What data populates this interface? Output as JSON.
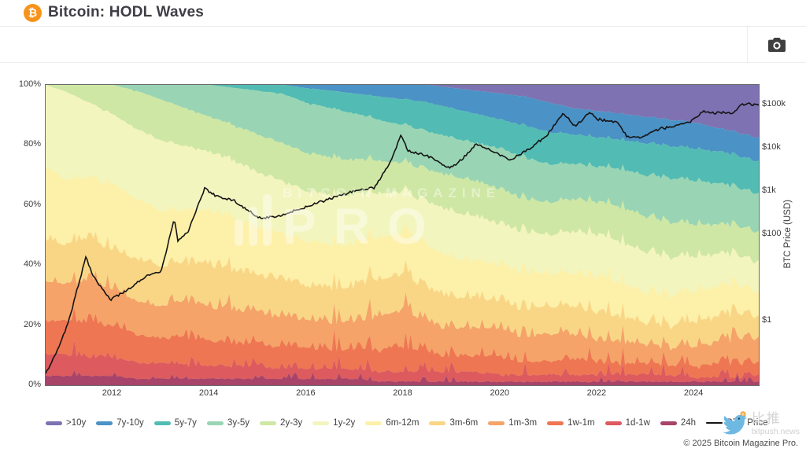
{
  "header": {
    "title": "Bitcoin: HODL Waves",
    "logo_glyph": "₿"
  },
  "watermark": {
    "line1": "BITCOIN MAGAZINE",
    "line2": "PRO"
  },
  "footer": {
    "copyright": "© 2025 Bitcoin Magazine Pro.",
    "bitpush_name": "比推",
    "bitpush_domain": "bitpush.news"
  },
  "chart_data": {
    "type": "area",
    "title": "Bitcoin: HODL Waves",
    "stacked": true,
    "grid": false,
    "legend_position": "bottom",
    "x": [
      2010.62,
      2011.0,
      2011.5,
      2012.0,
      2012.5,
      2013.0,
      2013.5,
      2014.0,
      2014.5,
      2015.0,
      2015.5,
      2016.0,
      2016.5,
      2017.0,
      2017.5,
      2018.0,
      2018.5,
      2019.0,
      2019.5,
      2020.0,
      2020.5,
      2021.0,
      2021.5,
      2022.0,
      2022.5,
      2023.0,
      2023.5,
      2024.0,
      2024.5,
      2025.0,
      2025.33
    ],
    "series": [
      {
        "name": ">10y",
        "color": "#7e72b3",
        "jitter": 0.0,
        "values": [
          0,
          0,
          0,
          0,
          0,
          0,
          0,
          0,
          0,
          0,
          0,
          0,
          0,
          0,
          0,
          0,
          0,
          1,
          2,
          3,
          4,
          6,
          8,
          9,
          10,
          11,
          12,
          13,
          15,
          17,
          18
        ]
      },
      {
        "name": "7y-10y",
        "color": "#4b92c6",
        "jitter": 0.15,
        "values": [
          0,
          0,
          0,
          0,
          0,
          0,
          0,
          0,
          0,
          0,
          0,
          1,
          2,
          3,
          4,
          5,
          6,
          7,
          8,
          9,
          10,
          10,
          9,
          9,
          9,
          9,
          9,
          9,
          8,
          8,
          8
        ]
      },
      {
        "name": "5y-7y",
        "color": "#52bcb4",
        "jitter": 0.2,
        "values": [
          0,
          0,
          0,
          0,
          0,
          0,
          0,
          0,
          1,
          2,
          3,
          5,
          6,
          7,
          8,
          9,
          10,
          10,
          10,
          10,
          11,
          11,
          10,
          10,
          10,
          11,
          11,
          11,
          11,
          11,
          11
        ]
      },
      {
        "name": "3y-5y",
        "color": "#99d5b4",
        "jitter": 0.3,
        "values": [
          0,
          0,
          0,
          0,
          2,
          5,
          8,
          11,
          13,
          15,
          17,
          17,
          17,
          16,
          14,
          13,
          13,
          13,
          13,
          14,
          14,
          13,
          12,
          12,
          13,
          14,
          15,
          15,
          14,
          13,
          13
        ]
      },
      {
        "name": "2y-3y",
        "color": "#cfe7a4",
        "jitter": 0.35,
        "values": [
          0,
          2,
          6,
          10,
          13,
          14,
          13,
          12,
          12,
          13,
          13,
          13,
          13,
          12,
          11,
          10,
          11,
          12,
          12,
          12,
          11,
          11,
          11,
          11,
          12,
          12,
          12,
          11,
          10,
          10,
          10
        ]
      },
      {
        "name": "1y-2y",
        "color": "#f3f5be",
        "jitter": 0.5,
        "values": [
          28,
          30,
          26,
          24,
          24,
          24,
          22,
          20,
          20,
          19,
          18,
          17,
          17,
          17,
          15,
          14,
          15,
          16,
          15,
          14,
          14,
          13,
          14,
          14,
          14,
          14,
          13,
          12,
          11,
          10,
          10
        ]
      },
      {
        "name": "6m-12m",
        "color": "#fdf0a8",
        "jitter": 1.0,
        "values": [
          24,
          22,
          20,
          22,
          20,
          19,
          17,
          18,
          17,
          16,
          15,
          15,
          14,
          14,
          14,
          14,
          14,
          13,
          12,
          12,
          12,
          11,
          11,
          12,
          11,
          10,
          10,
          10,
          10,
          9,
          8
        ]
      },
      {
        "name": "3m-6m",
        "color": "#f9d686",
        "jitter": 1.9,
        "values": [
          14,
          13,
          14,
          13,
          14,
          13,
          13,
          14,
          13,
          12,
          12,
          11,
          11,
          11,
          12,
          12,
          11,
          10,
          10,
          9,
          9,
          9,
          9,
          9,
          8,
          7,
          7,
          8,
          8,
          8,
          7
        ]
      },
      {
        "name": "1m-3m",
        "color": "#f5a368",
        "jitter": 2.9,
        "values": [
          13,
          12,
          14,
          12,
          11,
          10,
          12,
          11,
          11,
          10,
          10,
          9,
          9,
          9,
          11,
          11,
          10,
          9,
          9,
          9,
          8,
          9,
          8,
          7,
          7,
          6,
          5,
          6,
          7,
          8,
          8
        ]
      },
      {
        "name": "1w-1m",
        "color": "#ee7652",
        "jitter": 3.4,
        "values": [
          11,
          11,
          11,
          10,
          9,
          8,
          9,
          8,
          7,
          7,
          7,
          7,
          6,
          6,
          7,
          8,
          6,
          5,
          5,
          5,
          4,
          4,
          5,
          4,
          3,
          3,
          3,
          3,
          4,
          4,
          4
        ]
      },
      {
        "name": "1d-1w",
        "color": "#dd5a5e",
        "jitter": 2.5,
        "values": [
          7,
          7,
          6,
          6,
          5,
          5,
          4,
          4,
          4,
          4,
          3,
          3,
          3,
          3,
          3,
          3,
          3,
          3,
          3,
          2,
          2,
          2,
          2,
          2,
          2,
          2,
          2,
          1,
          1,
          1,
          2
        ]
      },
      {
        "name": "24h",
        "color": "#a8436a",
        "jitter": 1.4,
        "values": [
          3,
          3,
          3,
          3,
          2,
          2,
          2,
          2,
          2,
          2,
          2,
          2,
          2,
          2,
          1,
          1,
          1,
          1,
          1,
          1,
          1,
          1,
          1,
          1,
          1,
          1,
          1,
          1,
          1,
          1,
          1
        ]
      }
    ],
    "price_series": {
      "name": "BTC Price",
      "color": "#141414",
      "x": [
        2010.62,
        2010.9,
        2011.1,
        2011.45,
        2011.6,
        2011.95,
        2012.3,
        2012.7,
        2013.0,
        2013.27,
        2013.35,
        2013.55,
        2013.9,
        2014.1,
        2014.5,
        2015.05,
        2015.5,
        2016.0,
        2016.5,
        2017.0,
        2017.4,
        2017.7,
        2017.95,
        2018.1,
        2018.5,
        2018.95,
        2019.2,
        2019.5,
        2019.95,
        2020.2,
        2020.6,
        2020.95,
        2021.3,
        2021.55,
        2021.85,
        2022.0,
        2022.4,
        2022.6,
        2022.9,
        2023.3,
        2023.6,
        2023.95,
        2024.2,
        2024.35,
        2024.6,
        2024.8,
        2024.95,
        2025.1,
        2025.33
      ],
      "usd": [
        0.06,
        0.25,
        1.0,
        30,
        11,
        3,
        5,
        11,
        13,
        230,
        70,
        110,
        1150,
        800,
        600,
        230,
        280,
        430,
        670,
        1000,
        1200,
        4000,
        19500,
        8500,
        6500,
        3300,
        5300,
        12500,
        7200,
        5200,
        9500,
        19000,
        62000,
        31000,
        68000,
        46000,
        39000,
        19000,
        16500,
        28000,
        30500,
        42000,
        71000,
        63000,
        66000,
        59000,
        97000,
        104000,
        96000
      ]
    },
    "left_axis": {
      "label": "",
      "range": [
        0,
        100
      ],
      "ticks": [
        {
          "label": "100%",
          "value": 100
        },
        {
          "label": "80%",
          "value": 80
        },
        {
          "label": "60%",
          "value": 60
        },
        {
          "label": "40%",
          "value": 40
        },
        {
          "label": "20%",
          "value": 20
        },
        {
          "label": "0%",
          "value": 0
        }
      ]
    },
    "right_axis": {
      "title": "BTC Price (USD)",
      "scale": "log",
      "range": [
        0.032,
        285000
      ],
      "ticks": [
        {
          "label": "$100k",
          "value": 100000
        },
        {
          "label": "$10k",
          "value": 10000
        },
        {
          "label": "$1k",
          "value": 1000
        },
        {
          "label": "$100",
          "value": 100
        },
        {
          "label": "$1",
          "value": 1
        }
      ]
    },
    "x_axis": {
      "range": [
        2010.62,
        2025.33
      ],
      "ticks": [
        {
          "label": "2012",
          "value": 2012
        },
        {
          "label": "2014",
          "value": 2014
        },
        {
          "label": "2016",
          "value": 2016
        },
        {
          "label": "2018",
          "value": 2018
        },
        {
          "label": "2020",
          "value": 2020
        },
        {
          "label": "2022",
          "value": 2022
        },
        {
          "label": "2024",
          "value": 2024
        }
      ]
    }
  }
}
